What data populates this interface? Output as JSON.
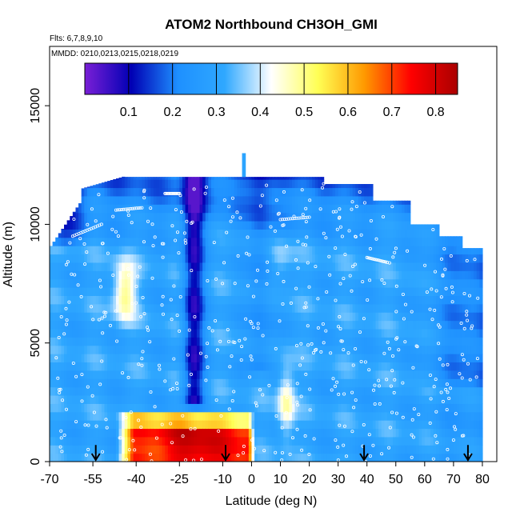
{
  "chart_data": {
    "type": "heatmap",
    "title": "ATOM2 Northbound CH3OH_GMI",
    "subtitle_flights": "Flts: 6,7,8,9,10",
    "subtitle_dates": "MMDD: 0210,0213,0215,0218,0219",
    "xlabel": "Latitude (deg N)",
    "ylabel": "Altitude (m)",
    "xlim": [
      -70,
      85
    ],
    "ylim": [
      0,
      17500
    ],
    "x_ticks": [
      -70,
      -55,
      -40,
      -25,
      -10,
      0,
      10,
      20,
      30,
      40,
      50,
      60,
      70,
      80
    ],
    "x_tick_labels": [
      "-70",
      "-55",
      "-40",
      "-25",
      "-10",
      "0",
      "10",
      "20",
      "30",
      "40",
      "50",
      "60",
      "70",
      "80"
    ],
    "y_ticks": [
      0,
      5000,
      10000,
      15000
    ],
    "y_tick_labels": [
      "0",
      "5000",
      "10000",
      "15000"
    ],
    "colorbar": {
      "range": [
        0.0,
        0.85
      ],
      "ticks": [
        0.1,
        0.2,
        0.3,
        0.4,
        0.5,
        0.6,
        0.7,
        0.8
      ],
      "tick_labels": [
        "0.1",
        "0.2",
        "0.3",
        "0.4",
        "0.5",
        "0.6",
        "0.7",
        "0.8"
      ],
      "colors": [
        "#7a1fd6",
        "#0000b4",
        "#1e90ff",
        "#2fa8ff",
        "#ffffff",
        "#ffff55",
        "#ff9900",
        "#ff0000",
        "#aa0000"
      ]
    },
    "field_description": "Curtain of CH3OH mixing ratio; high values (0.6-0.8) near surface between -45 and 0 deg N; low values (0.05-0.15) in upper troposphere and a column near -20 deg N.",
    "flight_track_markers": "white open circles",
    "profile_arrows_latitude": [
      -54,
      -9,
      39,
      75
    ],
    "arrow_color": "#000000"
  }
}
